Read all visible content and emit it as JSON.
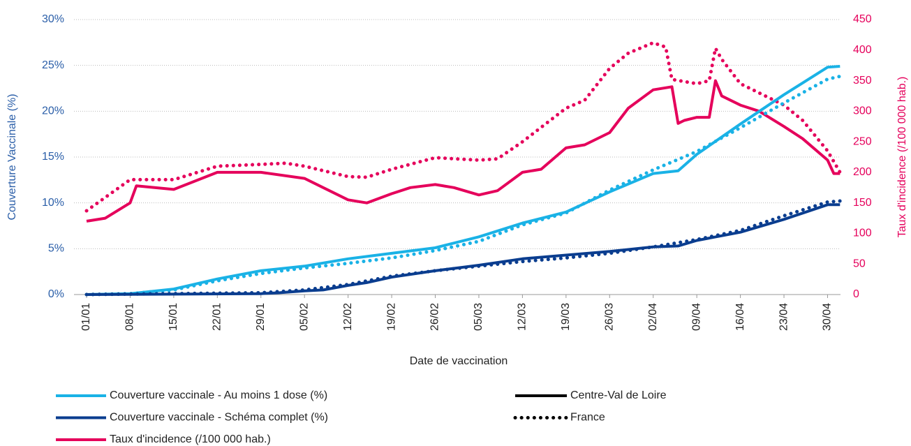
{
  "chart_data": {
    "type": "line",
    "xlabel": "Date de vaccination",
    "ylabel": "Couverture Vaccinale (%)",
    "y2label": "Taux d'incidence (/100 000 hab.)",
    "ylim": [
      0,
      30
    ],
    "yticks": [
      {
        "value": 0,
        "label": "0%"
      },
      {
        "value": 5,
        "label": "5%"
      },
      {
        "value": 10,
        "label": "10%"
      },
      {
        "value": 15,
        "label": "15%"
      },
      {
        "value": 20,
        "label": "20%"
      },
      {
        "value": 25,
        "label": "25%"
      },
      {
        "value": 30,
        "label": "30%"
      }
    ],
    "y2lim": [
      0,
      450
    ],
    "y2ticks": [
      0,
      50,
      100,
      150,
      200,
      250,
      300,
      350,
      400,
      450
    ],
    "xticks": [
      "01/01",
      "08/01",
      "15/01",
      "22/01",
      "29/01",
      "05/02",
      "12/02",
      "19/02",
      "26/02",
      "05/03",
      "12/03",
      "19/03",
      "26/03",
      "02/04",
      "09/04",
      "16/04",
      "23/04",
      "30/04"
    ],
    "grid": true,
    "regions": [
      {
        "name": "Centre-Val de Loire",
        "dash": "solid"
      },
      {
        "name": "France",
        "dash": "dotted"
      }
    ],
    "series": [
      {
        "name": "Couverture vaccinale - Au moins 1 dose (%)",
        "color": "#1ab2e6",
        "axis": "y",
        "regions": [
          {
            "x": [
              "01/01",
              "08/01",
              "15/01",
              "22/01",
              "29/01",
              "05/02",
              "12/02",
              "19/02",
              "26/02",
              "05/03",
              "12/03",
              "19/03",
              "26/03",
              "02/04",
              "06/04",
              "09/04",
              "16/04",
              "23/04",
              "30/04",
              "02/05"
            ],
            "values": [
              0,
              0.1,
              0.6,
              1.7,
              2.6,
              3.1,
              3.9,
              4.5,
              5.1,
              6.3,
              7.8,
              9.0,
              11.2,
              13.2,
              13.5,
              15.3,
              18.6,
              21.8,
              24.8,
              24.9
            ]
          },
          {
            "x": [
              "01/01",
              "08/01",
              "15/01",
              "22/01",
              "29/01",
              "05/02",
              "12/02",
              "19/02",
              "26/02",
              "05/03",
              "12/03",
              "19/03",
              "26/03",
              "02/04",
              "09/04",
              "16/04",
              "23/04",
              "30/04",
              "02/05"
            ],
            "values": [
              0,
              0.1,
              0.5,
              1.5,
              2.3,
              2.9,
              3.4,
              4.0,
              4.8,
              5.8,
              7.6,
              8.9,
              11.4,
              13.6,
              15.6,
              18.2,
              20.9,
              23.5,
              23.8
            ]
          }
        ]
      },
      {
        "name": "Couverture vaccinale - Schéma complet (%)",
        "color": "#0a3d8f",
        "axis": "y",
        "regions": [
          {
            "x": [
              "01/01",
              "29/01",
              "01/02",
              "05/02",
              "08/02",
              "12/02",
              "15/02",
              "19/02",
              "26/02",
              "05/03",
              "12/03",
              "19/03",
              "26/03",
              "02/04",
              "06/04",
              "09/04",
              "16/04",
              "23/04",
              "30/04",
              "02/05"
            ],
            "values": [
              0,
              0.1,
              0.2,
              0.4,
              0.5,
              1.0,
              1.3,
              1.9,
              2.6,
              3.2,
              3.9,
              4.3,
              4.7,
              5.2,
              5.3,
              5.9,
              6.8,
              8.2,
              9.8,
              9.8
            ]
          },
          {
            "x": [
              "01/01",
              "29/01",
              "05/02",
              "12/02",
              "19/02",
              "26/02",
              "05/03",
              "12/03",
              "19/03",
              "26/03",
              "02/04",
              "09/04",
              "16/04",
              "23/04",
              "30/04",
              "02/05"
            ],
            "values": [
              0,
              0.2,
              0.5,
              1.1,
              2.0,
              2.6,
              3.1,
              3.6,
              4.0,
              4.5,
              5.2,
              6.0,
              7.0,
              8.6,
              10.1,
              10.2
            ]
          }
        ]
      },
      {
        "name": "Taux d'incidence (/100 000 hab.)",
        "color": "#e5005b",
        "axis": "y2",
        "regions": [
          {
            "x": [
              "01/01",
              "04/01",
              "08/01",
              "09/01",
              "15/01",
              "22/01",
              "29/01",
              "05/02",
              "08/02",
              "12/02",
              "15/02",
              "19/02",
              "22/02",
              "26/02",
              "01/03",
              "05/03",
              "08/03",
              "12/03",
              "15/03",
              "19/03",
              "22/03",
              "26/03",
              "29/03",
              "02/04",
              "05/04",
              "06/04",
              "07/04",
              "09/04",
              "11/04",
              "12/04",
              "13/04",
              "16/04",
              "19/04",
              "23/04",
              "26/04",
              "30/04",
              "01/05",
              "02/05"
            ],
            "values": [
              120,
              125,
              150,
              178,
              172,
              200,
              200,
              190,
              175,
              155,
              150,
              165,
              175,
              180,
              175,
              163,
              170,
              200,
              205,
              240,
              245,
              265,
              305,
              335,
              340,
              280,
              285,
              290,
              290,
              350,
              325,
              310,
              300,
              275,
              255,
              220,
              198,
              198
            ]
          },
          {
            "x": [
              "01/01",
              "08/01",
              "15/01",
              "22/01",
              "29/01",
              "02/02",
              "05/02",
              "12/02",
              "15/02",
              "19/02",
              "26/02",
              "05/03",
              "08/03",
              "12/03",
              "19/03",
              "22/03",
              "26/03",
              "29/03",
              "02/04",
              "04/04",
              "05/04",
              "09/04",
              "11/04",
              "12/04",
              "13/04",
              "16/04",
              "23/04",
              "26/04",
              "30/04",
              "02/05"
            ],
            "values": [
              137,
              188,
              188,
              210,
              213,
              215,
              210,
              193,
              192,
              205,
              224,
              220,
              222,
              250,
              305,
              318,
              370,
              395,
              412,
              405,
              352,
              345,
              350,
              403,
              385,
              345,
              310,
              285,
              235,
              200
            ]
          }
        ]
      }
    ]
  }
}
